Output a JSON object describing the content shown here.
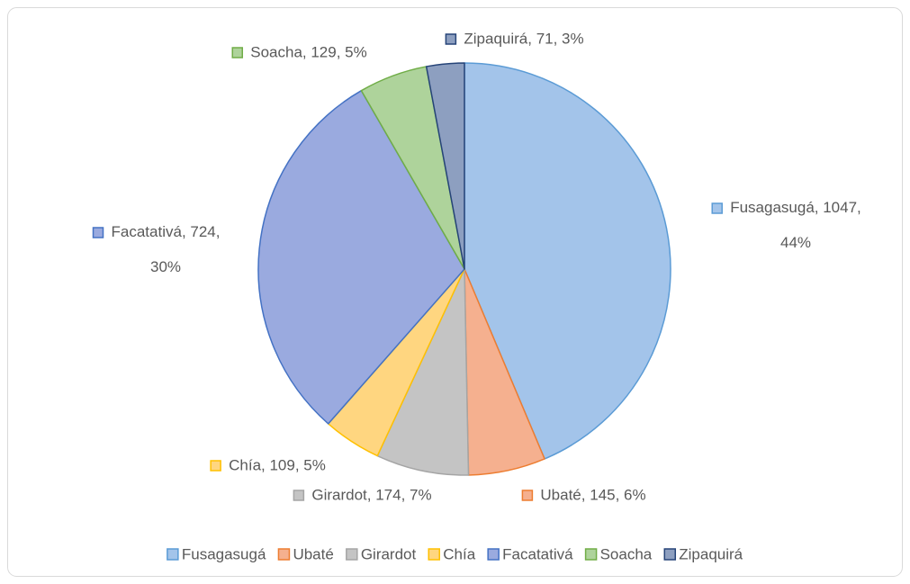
{
  "chart_data": {
    "type": "pie",
    "categories": [
      "Fusagasugá",
      "Ubaté",
      "Girardot",
      "Chía",
      "Facatativá",
      "Soacha",
      "Zipaquirá"
    ],
    "values": [
      1047,
      145,
      174,
      109,
      724,
      129,
      71
    ],
    "value_labels": [
      "Fusagasugá, 1047, 44%",
      "Ubaté, 145, 6%",
      "Girardot, 174, 7%",
      "Chía, 109, 5%",
      "Facatativá, 724, 30%",
      "Soacha, 129, 5%",
      "Zipaquirá, 71, 3%"
    ],
    "colors": [
      "#a3c4ea",
      "#f5b08f",
      "#c4c4c4",
      "#ffd680",
      "#9aaadf",
      "#aed39b",
      "#8d9fc0"
    ],
    "edge_colors": [
      "#5b9bd5",
      "#ed7d31",
      "#a5a5a5",
      "#ffc000",
      "#4472c4",
      "#70ad47",
      "#264478"
    ],
    "legend": "bottom"
  }
}
